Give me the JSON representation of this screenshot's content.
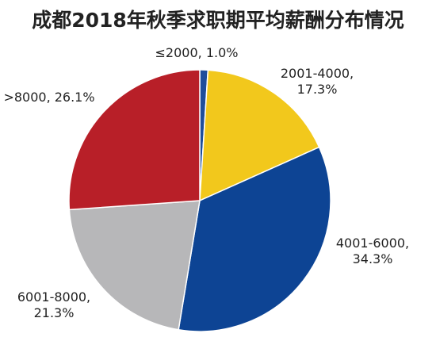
{
  "chart_data": {
    "type": "pie",
    "title": "成都2018年秋季求职期平均薪酬分布情况",
    "start_angle_deg": -90,
    "direction": "clockwise",
    "legend": "none",
    "slices": [
      {
        "category": "≤2000",
        "value": 1.0,
        "value_label": "1.0%",
        "label_lines": [
          "≤2000, 1.0%"
        ],
        "color": "#1f4e9b"
      },
      {
        "category": "2001-4000",
        "value": 17.3,
        "value_label": "17.3%",
        "label_lines": [
          "2001-4000,",
          "17.3%"
        ],
        "color": "#f2c81c"
      },
      {
        "category": "4001-6000",
        "value": 34.3,
        "value_label": "34.3%",
        "label_lines": [
          "4001-6000,",
          "34.3%"
        ],
        "color": "#0d4494"
      },
      {
        "category": "6001-8000",
        "value": 21.3,
        "value_label": "21.3%",
        "label_lines": [
          "6001-8000,",
          "21.3%"
        ],
        "color": "#b7b7b9"
      },
      {
        "category": ">8000",
        "value": 26.1,
        "value_label": "26.1%",
        "label_lines": [
          ">8000, 26.1%"
        ],
        "color": "#b81f28"
      }
    ]
  }
}
